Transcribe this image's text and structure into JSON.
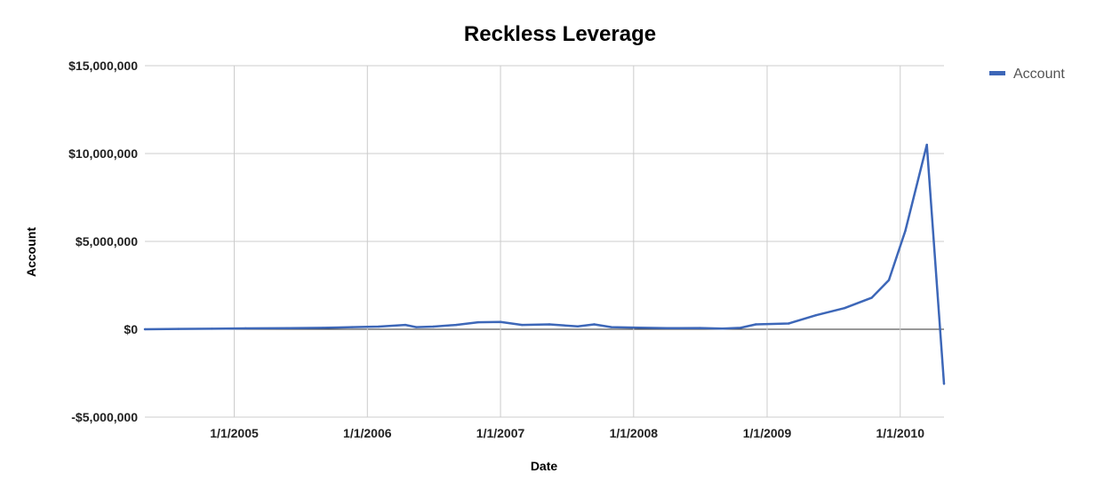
{
  "chart_data": {
    "type": "line",
    "title": "Reckless Leverage",
    "xlabel": "Date",
    "ylabel": "Account",
    "ylim": [
      -5000000,
      15000000
    ],
    "xlim": [
      "2004-05-01",
      "2010-05-01"
    ],
    "yticks": [
      -5000000,
      0,
      5000000,
      10000000,
      15000000
    ],
    "ytick_labels": [
      "-$5,000,000",
      "$0",
      "$5,000,000",
      "$10,000,000",
      "$15,000,000"
    ],
    "xticks": [
      "2005-01-01",
      "2006-01-01",
      "2007-01-01",
      "2008-01-01",
      "2009-01-01",
      "2010-01-01"
    ],
    "xtick_labels": [
      "1/1/2005",
      "1/1/2006",
      "1/1/2007",
      "1/1/2008",
      "1/1/2009",
      "1/1/2010"
    ],
    "grid": true,
    "legend_position": "top-right",
    "series": [
      {
        "name": "Account",
        "color": "#3d67b8",
        "x": [
          "2004-05-01",
          "2004-08-01",
          "2004-11-01",
          "2005-02-01",
          "2005-06-01",
          "2005-09-01",
          "2005-11-20",
          "2006-02-01",
          "2006-04-15",
          "2006-05-15",
          "2006-07-01",
          "2006-09-01",
          "2006-11-01",
          "2007-01-01",
          "2007-03-01",
          "2007-05-15",
          "2007-08-01",
          "2007-09-15",
          "2007-11-01",
          "2008-01-15",
          "2008-04-01",
          "2008-07-01",
          "2008-09-01",
          "2008-10-20",
          "2008-12-01",
          "2009-03-01",
          "2009-05-15",
          "2009-08-01",
          "2009-10-15",
          "2009-12-01",
          "2010-01-15",
          "2010-03-15",
          "2010-05-01"
        ],
        "y": [
          0,
          20000,
          30000,
          50000,
          60000,
          80000,
          120000,
          150000,
          250000,
          120000,
          150000,
          250000,
          400000,
          420000,
          250000,
          280000,
          160000,
          280000,
          120000,
          90000,
          60000,
          70000,
          40000,
          80000,
          280000,
          330000,
          800000,
          1200000,
          1800000,
          2800000,
          5600000,
          10500000,
          -3100000
        ]
      }
    ]
  }
}
